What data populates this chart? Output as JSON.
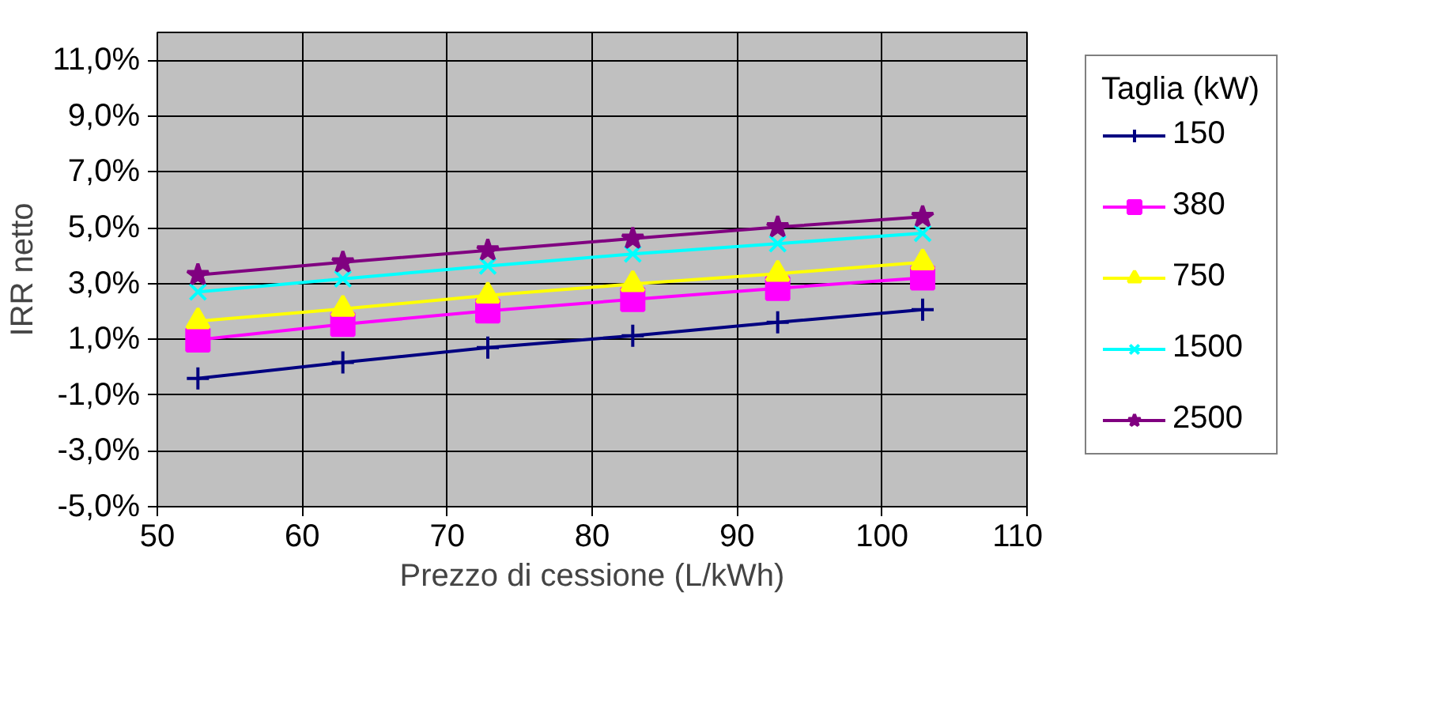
{
  "chart_data": {
    "type": "line",
    "xlabel": "Prezzo di cessione (L/kWh)",
    "ylabel": "IRR netto",
    "legend_title": "Taglia (kW)",
    "x": [
      52.8,
      62.8,
      72.8,
      82.8,
      92.8,
      102.8
    ],
    "xlim": [
      50,
      110
    ],
    "xticks": [
      50,
      60,
      70,
      80,
      90,
      100,
      110
    ],
    "ylim": [
      -5,
      12
    ],
    "yticks": [
      {
        "value": -5,
        "label": "-5,0%"
      },
      {
        "value": -3,
        "label": "-3,0%"
      },
      {
        "value": -1,
        "label": "-1,0%"
      },
      {
        "value": 1,
        "label": "1,0%"
      },
      {
        "value": 3,
        "label": "3,0%"
      },
      {
        "value": 5,
        "label": "5,0%"
      },
      {
        "value": 7,
        "label": "7,0%"
      },
      {
        "value": 9,
        "label": "9,0%"
      },
      {
        "value": 11,
        "label": "11,0%"
      }
    ],
    "grid": true,
    "legend": "right",
    "series": [
      {
        "name": "150",
        "color": "#000080",
        "marker": "cross",
        "values": [
          -0.4,
          0.17,
          0.7,
          1.13,
          1.61,
          2.06
        ]
      },
      {
        "name": "380",
        "color": "#ff00ff",
        "marker": "square",
        "values": [
          0.98,
          1.54,
          2.02,
          2.43,
          2.83,
          3.2
        ]
      },
      {
        "name": "750",
        "color": "#ffff00",
        "marker": "triangle",
        "values": [
          1.65,
          2.09,
          2.57,
          2.98,
          3.35,
          3.76
        ]
      },
      {
        "name": "1500",
        "color": "#00ffff",
        "marker": "x",
        "values": [
          2.7,
          3.17,
          3.63,
          4.06,
          4.43,
          4.8
        ]
      },
      {
        "name": "2500",
        "color": "#800080",
        "marker": "star",
        "values": [
          3.31,
          3.76,
          4.19,
          4.61,
          5.02,
          5.39
        ]
      }
    ]
  }
}
